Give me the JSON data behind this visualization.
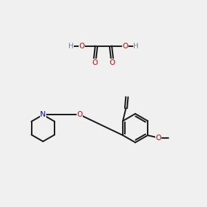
{
  "bg_color": "#f0f0f0",
  "line_color": "#1a1a1a",
  "oxygen_color": "#cc0000",
  "nitrogen_color": "#0000cc",
  "gray_color": "#708090",
  "bond_lw": 1.5,
  "fig_width": 3.0,
  "fig_height": 3.0,
  "dpi": 100,
  "xlim": [
    0,
    10
  ],
  "ylim": [
    0,
    10
  ]
}
